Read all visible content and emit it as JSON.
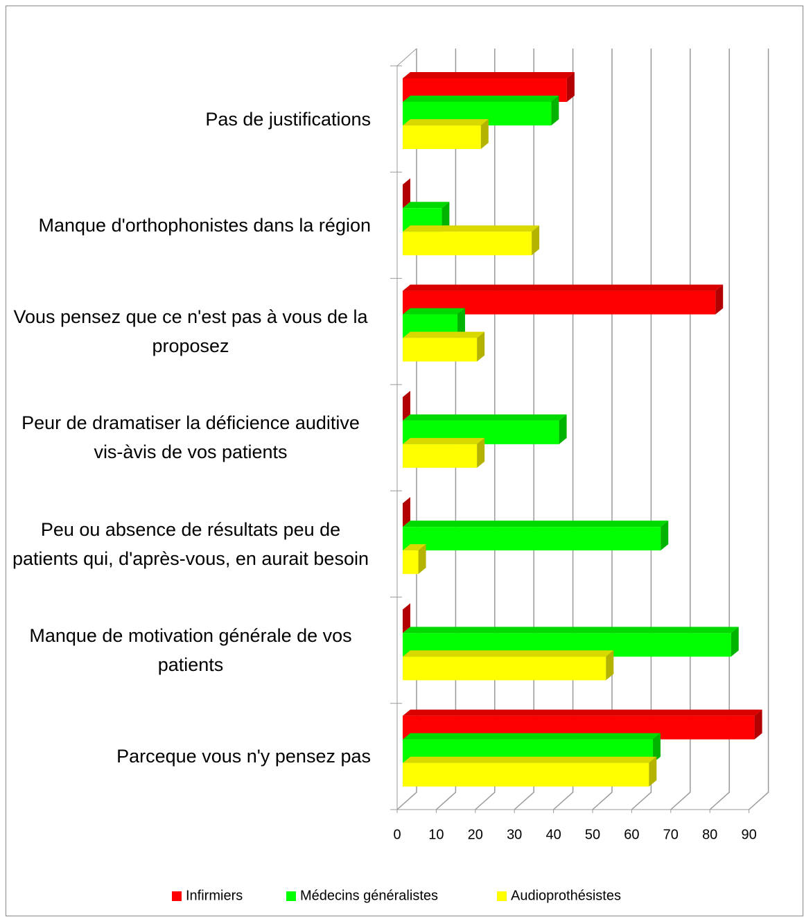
{
  "chart_data": {
    "type": "bar3d_horizontal",
    "categories": [
      "Pas de justifications",
      "Manque d'orthophonistes dans la région",
      "Vous pensez que ce n'est pas à vous de la proposez",
      "Peur de dramatiser la déficience auditive vis-àvis de vos patients",
      "Peu ou absence de résultats peu de patients qui, d'après-vous, en aurait besoin",
      "Manque de motivation générale de vos patients",
      "Parceque vous n'y pensez pas"
    ],
    "series": [
      {
        "name": "Infirmiers",
        "color": "#ff0000",
        "values": [
          42,
          0,
          80,
          0,
          0,
          0,
          90
        ]
      },
      {
        "name": "Médecins généralistes",
        "color": "#00ff00",
        "values": [
          38,
          10,
          14,
          40,
          66,
          84,
          64
        ]
      },
      {
        "name": "Audioprothésistes",
        "color": "#ffff00",
        "values": [
          20,
          33,
          19,
          19,
          4,
          52,
          63
        ]
      }
    ],
    "xlim": [
      0,
      90
    ],
    "xticks": [
      0,
      10,
      20,
      30,
      40,
      50,
      60,
      70,
      80,
      90
    ],
    "grid": true,
    "legend": "bottom"
  }
}
